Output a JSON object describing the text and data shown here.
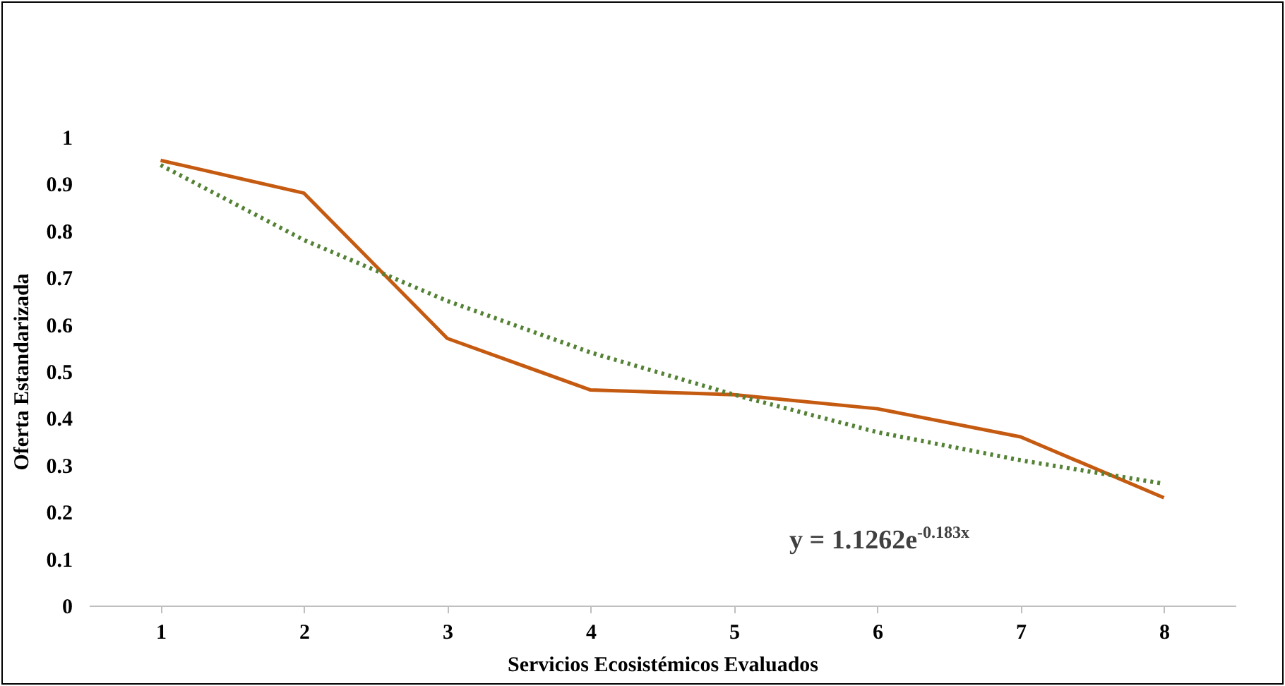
{
  "chart_data": {
    "type": "line",
    "xlabel": "Servicios Ecosistémicos Evaluados",
    "ylabel": "Oferta Estandarizada",
    "categories": [
      "1",
      "2",
      "3",
      "4",
      "5",
      "6",
      "7",
      "8"
    ],
    "series": [
      {
        "color": "#c55a11",
        "line_style": "solid",
        "values": [
          0.95,
          0.88,
          0.57,
          0.46,
          0.45,
          0.42,
          0.36,
          0.23
        ]
      },
      {
        "type": "line",
        "color": "#548235",
        "line_style": "dotted",
        "x": [
          "1",
          "2",
          "3",
          "4",
          "5",
          "6",
          "7",
          "8"
        ],
        "values": [
          0.94,
          0.78,
          0.65,
          0.54,
          0.45,
          0.37,
          0.31,
          0.26
        ]
      }
    ],
    "ylim": [
      0,
      1
    ],
    "yticks": [
      0,
      0.1,
      0.2,
      0.3,
      0.4,
      0.5,
      0.6,
      0.7,
      0.8,
      0.9,
      1
    ],
    "annotations": [
      "y = 1.1262e$^{-0.183x}$"
    ]
  }
}
